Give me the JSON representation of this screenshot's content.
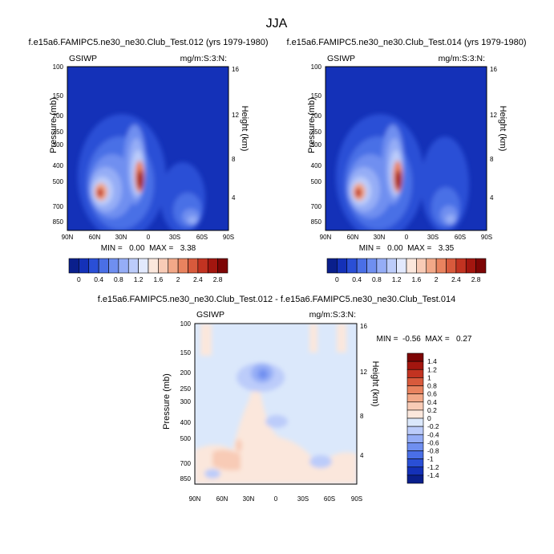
{
  "figure": {
    "title": "JJA"
  },
  "shared_axes": {
    "ylabel": "Pressure (mb)",
    "ylabel_right": "Height (km)",
    "pressure_ticks": [
      "100",
      "150",
      "200",
      "250",
      "300",
      "400",
      "500",
      "700",
      "850"
    ],
    "height_ticks": [
      "16",
      "12",
      "8",
      "4"
    ],
    "lat_ticks": [
      "90N",
      "60N",
      "30N",
      "0",
      "30S",
      "60S",
      "90S"
    ]
  },
  "chart_data": [
    {
      "type": "heatmap",
      "title": "f.e15a6.FAMIPC5.ne30_ne30.Club_Test.012 (yrs 1979-1980)",
      "left_label": "GSIWP",
      "right_label": "mg/m:S:3:N:",
      "stats_text": "MIN =   0.00  MAX =   3.38",
      "min": 0.0,
      "max": 3.38,
      "levels": [
        "0",
        "0.4",
        "0.8",
        "1.2",
        "1.6",
        "2",
        "2.4",
        "2.8"
      ],
      "colors": [
        "#0a1f8c",
        "#1431b8",
        "#2a4fd6",
        "#4a6fe6",
        "#6f8ff0",
        "#95adf6",
        "#bcccfa",
        "#e2e9fd",
        "#fbe7dc",
        "#f8cbb6",
        "#f2a888",
        "#e9835f",
        "#d85a3c",
        "#c23321",
        "#a3160f",
        "#7d0505"
      ],
      "xlabel": "",
      "x_range": [
        "90N",
        "90S"
      ],
      "y_range_mb": [
        100,
        850
      ]
    },
    {
      "type": "heatmap",
      "title": "f.e15a6.FAMIPC5.ne30_ne30.Club_Test.014 (yrs 1979-1980)",
      "left_label": "GSIWP",
      "right_label": "mg/m:S:3:N:",
      "stats_text": "MIN =   0.00  MAX =   3.35",
      "min": 0.0,
      "max": 3.35,
      "levels": [
        "0",
        "0.4",
        "0.8",
        "1.2",
        "1.6",
        "2",
        "2.4",
        "2.8"
      ],
      "colors": [
        "#0a1f8c",
        "#1431b8",
        "#2a4fd6",
        "#4a6fe6",
        "#6f8ff0",
        "#95adf6",
        "#bcccfa",
        "#e2e9fd",
        "#fbe7dc",
        "#f8cbb6",
        "#f2a888",
        "#e9835f",
        "#d85a3c",
        "#c23321",
        "#a3160f",
        "#7d0505"
      ],
      "xlabel": "",
      "x_range": [
        "90N",
        "90S"
      ],
      "y_range_mb": [
        100,
        850
      ]
    },
    {
      "type": "heatmap",
      "title": "f.e15a6.FAMIPC5.ne30_ne30.Club_Test.012 - f.e15a6.FAMIPC5.ne30_ne30.Club_Test.014",
      "left_label": "GSIWP",
      "right_label": "mg/m:S:3:N:",
      "stats_text": "MIN =  -0.56  MAX =   0.27",
      "min": -0.56,
      "max": 0.27,
      "levels": [
        "1.4",
        "1.2",
        "1",
        "0.8",
        "0.6",
        "0.4",
        "0.2",
        "0",
        "-0.2",
        "-0.4",
        "-0.6",
        "-0.8",
        "-1",
        "-1.2",
        "-1.4"
      ],
      "colors": [
        "#7d0505",
        "#a3160f",
        "#c23321",
        "#d85a3c",
        "#e9835f",
        "#f2a888",
        "#f8cbb6",
        "#fbe7dc",
        "#dbe8fb",
        "#bcccfa",
        "#95adf6",
        "#6f8ff0",
        "#4a6fe6",
        "#2a4fd6",
        "#1431b8",
        "#0a1f8c"
      ],
      "x_range": [
        "90N",
        "90S"
      ],
      "y_range_mb": [
        100,
        850
      ]
    }
  ]
}
